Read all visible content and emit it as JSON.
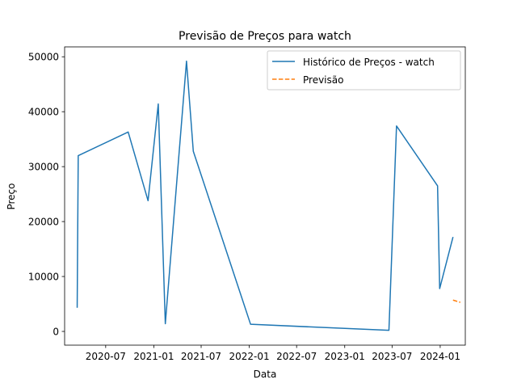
{
  "chart_data": {
    "type": "line",
    "title": "Previsão de Preços para watch",
    "xlabel": "Data",
    "ylabel": "Preço",
    "xlim": [
      "2020-01-26",
      "2024-04-06"
    ],
    "ylim": [
      -2500,
      51800
    ],
    "x_ticks": [
      "2020-07",
      "2021-01",
      "2021-07",
      "2022-01",
      "2022-07",
      "2023-01",
      "2023-07",
      "2024-01"
    ],
    "y_ticks": [
      0,
      10000,
      20000,
      30000,
      40000,
      50000
    ],
    "legend_position": "upper right",
    "grid": false,
    "series": [
      {
        "name": "Histórico de Preços - watch",
        "color": "#1f77b4",
        "style": "solid",
        "points": [
          {
            "x": "2020-03-14",
            "y": 4300
          },
          {
            "x": "2020-03-18",
            "y": 32000
          },
          {
            "x": "2020-09-25",
            "y": 36300
          },
          {
            "x": "2020-12-10",
            "y": 23800
          },
          {
            "x": "2021-01-18",
            "y": 41400
          },
          {
            "x": "2021-02-14",
            "y": 1400
          },
          {
            "x": "2021-05-06",
            "y": 49200
          },
          {
            "x": "2021-06-01",
            "y": 32800
          },
          {
            "x": "2022-01-06",
            "y": 1300
          },
          {
            "x": "2023-06-19",
            "y": 200
          },
          {
            "x": "2023-07-18",
            "y": 37400
          },
          {
            "x": "2023-12-22",
            "y": 26500
          },
          {
            "x": "2023-12-30",
            "y": 7800
          },
          {
            "x": "2024-02-19",
            "y": 17200
          }
        ]
      },
      {
        "name": "Previsão",
        "color": "#ff7f0e",
        "style": "dashed",
        "points": [
          {
            "x": "2024-02-19",
            "y": 5700
          },
          {
            "x": "2024-03-18",
            "y": 5300
          }
        ]
      }
    ]
  }
}
